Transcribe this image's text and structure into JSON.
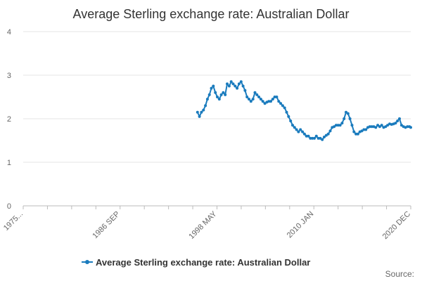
{
  "chart_data": {
    "type": "line",
    "title": "Average Sterling exchange rate: Australian Dollar",
    "xlabel": "",
    "ylabel": "",
    "ylim": [
      0,
      4
    ],
    "yticks": [
      "0",
      "1",
      "2",
      "3",
      "4"
    ],
    "xlim": [
      "1975-01",
      "2023-12"
    ],
    "xtick_labels": [
      "1975...",
      "1986 SEP",
      "1998 MAY",
      "2010 JAN",
      "2020 DEC"
    ],
    "legend_position": "bottom",
    "grid": true,
    "series": [
      {
        "name": "Average Sterling exchange rate: Australian Dollar",
        "color": "#1a7bbd",
        "x": [
          "1997-01",
          "1997-04",
          "1997-07",
          "1997-10",
          "1998-01",
          "1998-04",
          "1998-07",
          "1998-10",
          "1999-01",
          "1999-04",
          "1999-07",
          "1999-10",
          "2000-01",
          "2000-04",
          "2000-07",
          "2000-10",
          "2001-01",
          "2001-04",
          "2001-07",
          "2001-10",
          "2002-01",
          "2002-04",
          "2002-07",
          "2002-10",
          "2003-01",
          "2003-04",
          "2003-07",
          "2003-10",
          "2004-01",
          "2004-04",
          "2004-07",
          "2004-10",
          "2005-01",
          "2005-04",
          "2005-07",
          "2005-10",
          "2006-01",
          "2006-04",
          "2006-07",
          "2006-10",
          "2007-01",
          "2007-04",
          "2007-07",
          "2007-10",
          "2008-01",
          "2008-04",
          "2008-07",
          "2008-10",
          "2009-01",
          "2009-04",
          "2009-07",
          "2009-10",
          "2010-01",
          "2010-04",
          "2010-07",
          "2010-10",
          "2011-01",
          "2011-04",
          "2011-07",
          "2011-10",
          "2012-01",
          "2012-04",
          "2012-07",
          "2012-10",
          "2013-01",
          "2013-04",
          "2013-07",
          "2013-10",
          "2014-01",
          "2014-04",
          "2014-07",
          "2014-10",
          "2015-01",
          "2015-04",
          "2015-07",
          "2015-10",
          "2016-01",
          "2016-04",
          "2016-07",
          "2016-10",
          "2017-01",
          "2017-04",
          "2017-07",
          "2017-10",
          "2018-01",
          "2018-04",
          "2018-07",
          "2018-10",
          "2019-01",
          "2019-04",
          "2019-07",
          "2019-10",
          "2020-01",
          "2020-04",
          "2020-07",
          "2020-10",
          "2021-01",
          "2021-04",
          "2021-07",
          "2021-10",
          "2022-01",
          "2022-04",
          "2022-07",
          "2022-10",
          "2023-01",
          "2023-04",
          "2023-07",
          "2023-10",
          "2023-12"
        ],
        "values": [
          2.15,
          2.05,
          2.15,
          2.2,
          2.3,
          2.45,
          2.55,
          2.7,
          2.75,
          2.6,
          2.5,
          2.45,
          2.55,
          2.6,
          2.55,
          2.8,
          2.75,
          2.85,
          2.8,
          2.75,
          2.7,
          2.8,
          2.85,
          2.75,
          2.65,
          2.5,
          2.45,
          2.4,
          2.45,
          2.6,
          2.55,
          2.5,
          2.45,
          2.4,
          2.35,
          2.38,
          2.4,
          2.4,
          2.45,
          2.5,
          2.5,
          2.4,
          2.35,
          2.3,
          2.25,
          2.15,
          2.05,
          1.95,
          1.85,
          1.8,
          1.75,
          1.7,
          1.75,
          1.7,
          1.65,
          1.6,
          1.6,
          1.55,
          1.55,
          1.55,
          1.6,
          1.55,
          1.55,
          1.52,
          1.58,
          1.62,
          1.65,
          1.72,
          1.8,
          1.82,
          1.85,
          1.85,
          1.85,
          1.9,
          2.0,
          2.15,
          2.12,
          2.0,
          1.85,
          1.7,
          1.65,
          1.65,
          1.7,
          1.72,
          1.75,
          1.75,
          1.8,
          1.82,
          1.82,
          1.82,
          1.8,
          1.85,
          1.82,
          1.85,
          1.8,
          1.82,
          1.85,
          1.88,
          1.87,
          1.88,
          1.9,
          1.95,
          2.0,
          1.85,
          1.82,
          1.8,
          1.82,
          1.82,
          1.8
        ]
      }
    ],
    "source_label": "Source:"
  }
}
